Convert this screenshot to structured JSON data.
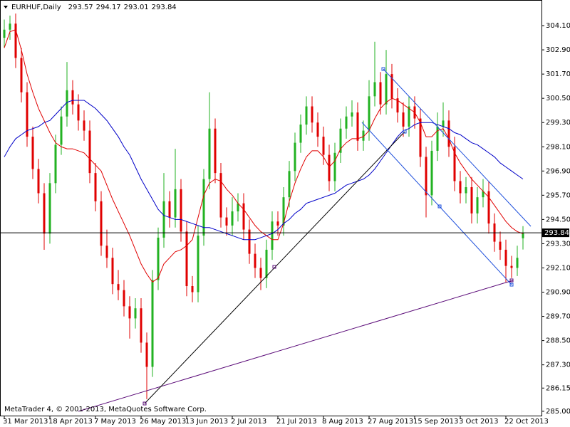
{
  "chart_data": {
    "type": "candlestick",
    "title": "EURHUF,Daily",
    "footer": "MetaTrader 4, © 2001-2013, MetaQuotes Software Corp.",
    "up_color": "#22b222",
    "down_color": "#e00000",
    "price_line_color": "#000000",
    "categories": [
      "31 Mar 2013",
      null,
      null,
      null,
      null,
      null,
      null,
      null,
      "18 Apr 2013",
      null,
      null,
      null,
      null,
      null,
      null,
      null,
      "7 May 2013",
      null,
      null,
      null,
      null,
      null,
      null,
      null,
      "26 May 2013",
      null,
      null,
      null,
      null,
      null,
      null,
      null,
      "13 Jun 2013",
      null,
      null,
      null,
      null,
      null,
      null,
      null,
      "2 Jul 2013",
      null,
      null,
      null,
      null,
      null,
      null,
      null,
      "21 Jul 2013",
      null,
      null,
      null,
      null,
      null,
      null,
      null,
      "8 Aug 2013",
      null,
      null,
      null,
      null,
      null,
      null,
      null,
      "27 Aug 2013",
      null,
      null,
      null,
      null,
      null,
      null,
      null,
      "15 Sep 2013",
      null,
      null,
      null,
      null,
      null,
      null,
      null,
      "3 Oct 2013",
      null,
      null,
      null,
      null,
      null,
      null,
      null,
      "22 Oct 2013",
      null,
      null,
      null
    ],
    "open": [
      303.5,
      303.9,
      304.2,
      302.5,
      300.8,
      298.6,
      297.0,
      295.8,
      293.8,
      296.3,
      298.2,
      299.6,
      300.9,
      300.2,
      299.4,
      298.9,
      296.8,
      295.4,
      293.2,
      292.6,
      291.3,
      291.0,
      290.2,
      289.6,
      290.1,
      288.4,
      287.2,
      291.5,
      293.6,
      295.4,
      294.6,
      296.0,
      293.9,
      291.2,
      290.9,
      293.7,
      296.5,
      299.0,
      296.8,
      294.6,
      294.2,
      294.9,
      295.3,
      294.0,
      292.8,
      292.1,
      291.6,
      293.0,
      294.4,
      294.2,
      295.6,
      296.9,
      298.3,
      299.2,
      300.1,
      299.3,
      298.6,
      297.7,
      296.4,
      297.8,
      299.0,
      299.6,
      299.8,
      298.4,
      298.9,
      300.6,
      301.3,
      300.2,
      301.7,
      300.5,
      299.8,
      299.1,
      300.1,
      299.5,
      297.6,
      295.7,
      297.9,
      299.1,
      299.4,
      298.1,
      296.4,
      295.8,
      296.1,
      294.8,
      295.6,
      295.9,
      294.3,
      293.4,
      293.0,
      292.2,
      292.1,
      293.57
    ],
    "high": [
      304.4,
      304.6,
      304.7,
      303.0,
      301.3,
      299.1,
      297.5,
      296.3,
      296.8,
      298.7,
      300.1,
      302.3,
      301.4,
      300.7,
      299.9,
      299.4,
      297.3,
      295.9,
      294.0,
      293.1,
      292.0,
      291.5,
      290.7,
      290.6,
      290.6,
      288.9,
      292.0,
      294.1,
      296.8,
      295.9,
      298.0,
      296.5,
      294.4,
      291.7,
      294.2,
      297.0,
      300.8,
      299.5,
      297.3,
      295.1,
      295.6,
      295.8,
      295.8,
      294.5,
      293.3,
      292.6,
      293.5,
      294.9,
      294.9,
      296.1,
      297.4,
      298.8,
      299.7,
      300.6,
      300.6,
      299.8,
      299.1,
      298.2,
      298.3,
      299.5,
      300.1,
      300.4,
      300.3,
      299.4,
      301.4,
      303.3,
      301.8,
      302.9,
      302.2,
      301.0,
      300.3,
      300.6,
      300.6,
      300.0,
      298.1,
      298.4,
      299.8,
      300.3,
      299.9,
      298.6,
      296.9,
      296.6,
      296.6,
      296.1,
      296.5,
      296.4,
      294.8,
      293.9,
      293.5,
      292.7,
      293.2,
      294.17
    ],
    "low": [
      303.0,
      303.4,
      302.0,
      300.3,
      298.1,
      296.5,
      295.3,
      293.0,
      293.3,
      295.8,
      297.7,
      299.1,
      299.7,
      298.9,
      298.4,
      296.3,
      294.9,
      292.7,
      292.1,
      290.8,
      290.5,
      289.7,
      288.6,
      289.1,
      287.9,
      285.6,
      286.7,
      291.0,
      293.1,
      294.1,
      294.1,
      293.4,
      290.7,
      290.4,
      290.4,
      293.2,
      296.0,
      296.3,
      294.1,
      293.7,
      293.7,
      294.4,
      293.5,
      292.3,
      291.6,
      291.0,
      291.1,
      292.5,
      293.7,
      293.7,
      295.1,
      296.4,
      297.8,
      298.7,
      298.8,
      298.1,
      297.2,
      295.9,
      295.9,
      297.3,
      298.5,
      299.1,
      297.9,
      297.9,
      298.4,
      300.1,
      299.7,
      299.7,
      300.0,
      299.3,
      298.6,
      298.6,
      299.0,
      297.1,
      294.6,
      295.2,
      297.4,
      298.6,
      297.6,
      295.9,
      295.3,
      295.3,
      294.3,
      294.3,
      295.1,
      293.8,
      292.9,
      292.5,
      291.4,
      291.6,
      291.7,
      293.01
    ],
    "close": [
      303.9,
      304.2,
      302.5,
      300.8,
      298.6,
      297.0,
      295.8,
      293.8,
      296.3,
      298.2,
      299.6,
      300.9,
      300.2,
      299.4,
      298.9,
      296.8,
      295.4,
      293.2,
      292.6,
      291.3,
      291.0,
      290.2,
      289.6,
      290.1,
      288.4,
      287.2,
      291.5,
      293.6,
      295.4,
      294.6,
      296.0,
      293.9,
      291.2,
      290.9,
      293.7,
      296.5,
      299.0,
      296.8,
      294.6,
      294.2,
      294.9,
      295.3,
      294.0,
      292.8,
      292.1,
      291.6,
      293.0,
      294.4,
      294.2,
      295.6,
      296.9,
      298.3,
      299.2,
      300.1,
      299.3,
      298.6,
      297.7,
      296.4,
      297.8,
      299.0,
      299.6,
      299.8,
      298.4,
      298.9,
      300.6,
      301.3,
      300.2,
      301.7,
      300.5,
      299.8,
      299.1,
      300.1,
      299.5,
      297.6,
      295.7,
      297.9,
      299.1,
      299.4,
      298.1,
      296.4,
      295.8,
      296.1,
      294.8,
      295.6,
      295.9,
      294.3,
      293.4,
      293.0,
      292.2,
      292.1,
      292.6,
      293.84
    ],
    "lines": [
      {
        "color": "#e00000",
        "values": [
          303.0,
          303.8,
          303.9,
          302.9,
          301.7,
          300.8,
          300.0,
          299.4,
          298.8,
          298.3,
          298.1,
          298.0,
          298.0,
          297.9,
          297.8,
          297.5,
          297.2,
          296.9,
          296.2,
          295.5,
          294.9,
          294.3,
          293.7,
          293.0,
          292.3,
          291.8,
          291.4,
          291.6,
          292.3,
          292.6,
          292.9,
          293.0,
          293.2,
          293.5,
          294.6,
          295.7,
          296.3,
          296.5,
          296.4,
          296.0,
          295.7,
          295.3,
          295.0,
          294.6,
          294.2,
          293.9,
          293.7,
          293.5,
          293.5,
          294.3,
          295.4,
          296.3,
          297.0,
          297.6,
          297.9,
          297.9,
          297.6,
          297.1,
          297.4,
          298.0,
          298.3,
          298.5,
          298.5,
          298.6,
          298.9,
          299.5,
          300.0,
          300.3,
          300.5,
          300.4,
          300.2,
          300.0,
          299.8,
          299.3,
          298.6,
          298.6,
          298.9,
          299.0,
          298.5,
          297.8,
          297.3,
          296.9,
          296.5,
          296.2,
          295.9,
          295.6,
          295.2,
          294.8,
          294.4,
          294.1,
          293.9,
          293.8
        ]
      },
      {
        "color": "#0000c8",
        "values": [
          297.6,
          298.1,
          298.5,
          298.7,
          298.9,
          299.0,
          299.1,
          299.3,
          299.4,
          299.7,
          300.0,
          300.3,
          300.4,
          300.4,
          300.4,
          300.2,
          300.0,
          299.7,
          299.4,
          299.0,
          298.6,
          298.1,
          297.7,
          297.1,
          296.5,
          296.0,
          295.5,
          295.0,
          294.7,
          294.6,
          294.5,
          294.5,
          294.4,
          294.3,
          294.2,
          294.1,
          294.1,
          294.0,
          293.9,
          293.8,
          293.7,
          293.6,
          293.5,
          293.5,
          293.5,
          293.6,
          293.7,
          293.8,
          294.0,
          294.3,
          294.5,
          294.8,
          295.0,
          295.3,
          295.4,
          295.5,
          295.6,
          295.7,
          295.8,
          296.0,
          296.2,
          296.3,
          296.4,
          296.5,
          296.7,
          297.0,
          297.4,
          297.8,
          298.2,
          298.6,
          298.9,
          299.0,
          299.2,
          299.3,
          299.3,
          299.3,
          299.2,
          299.1,
          299.0,
          298.8,
          298.7,
          298.5,
          298.3,
          298.2,
          298.0,
          297.8,
          297.6,
          297.3,
          297.1,
          296.9,
          296.7,
          296.5
        ]
      }
    ],
    "ylim": [
      284.75,
      305.37
    ],
    "yticks": [
      {
        "value": 304.1,
        "label": "304.10"
      },
      {
        "value": 302.9,
        "label": "302.90"
      },
      {
        "value": 301.7,
        "label": "301.70"
      },
      {
        "value": 300.5,
        "label": "300.50"
      },
      {
        "value": 299.3,
        "label": "299.30"
      },
      {
        "value": 298.1,
        "label": "298.10"
      },
      {
        "value": 296.9,
        "label": "296.90"
      },
      {
        "value": 295.7,
        "label": "295.70"
      },
      {
        "value": 294.5,
        "label": "294.50"
      },
      {
        "value": 293.3,
        "label": "293.30"
      },
      {
        "value": 292.1,
        "label": "292.10"
      },
      {
        "value": 290.9,
        "label": "290.90"
      },
      {
        "value": 289.7,
        "label": "289.70"
      },
      {
        "value": 288.5,
        "label": "288.50"
      },
      {
        "value": 287.3,
        "label": "287.30"
      },
      {
        "value": 286.15,
        "label": "286.15"
      },
      {
        "value": 285.0,
        "label": "285.00"
      }
    ]
  }
}
